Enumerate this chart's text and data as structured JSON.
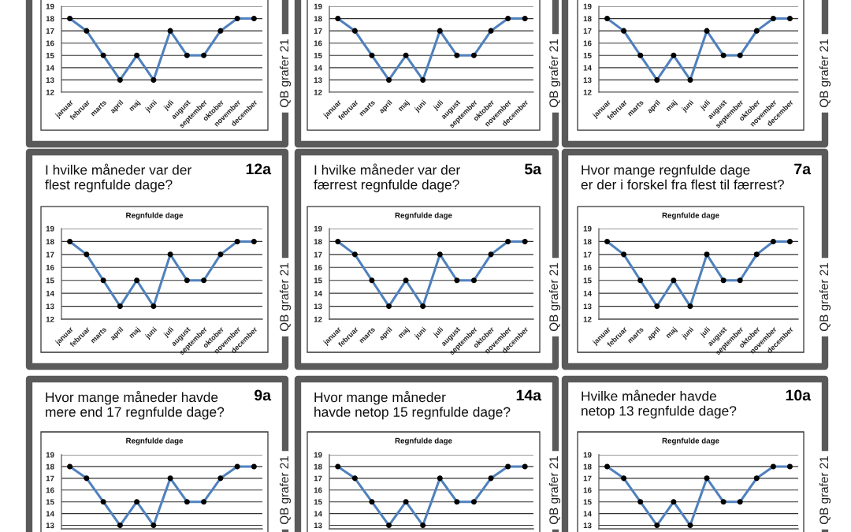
{
  "chart_data": [
    {
      "type": "line",
      "categories": [
        "januar",
        "februar",
        "marts",
        "april",
        "maj",
        "juni",
        "juli",
        "august",
        "september",
        "oktober",
        "november",
        "december"
      ],
      "series": [
        {
          "color": "#4f81bd",
          "colors": [
            "#000000",
            "#000000",
            "#000000",
            "#000000",
            "#000000",
            "#000000",
            "#000000",
            "#000000",
            "#000000",
            "#000000",
            "#000000",
            "#000000"
          ],
          "values": [
            18,
            17,
            15,
            13,
            15,
            13,
            17,
            15,
            15,
            17,
            18,
            18
          ]
        }
      ],
      "ylim": [
        12,
        19
      ],
      "yticks": [
        12,
        13,
        14,
        15,
        16,
        17,
        18,
        19
      ],
      "grid": "y",
      "marker": "circle",
      "line_style": "solid",
      "annotations": [
        "QB grafer 21"
      ]
    },
    {
      "type": "line",
      "categories": [
        "januar",
        "februar",
        "marts",
        "april",
        "maj",
        "juni",
        "juli",
        "august",
        "september",
        "oktober",
        "november",
        "december"
      ],
      "series": [
        {
          "color": "#4f81bd",
          "colors": [
            "#000000",
            "#000000",
            "#000000",
            "#000000",
            "#000000",
            "#000000",
            "#000000",
            "#000000",
            "#000000",
            "#000000",
            "#000000",
            "#000000"
          ],
          "values": [
            18,
            17,
            15,
            13,
            15,
            13,
            17,
            15,
            15,
            17,
            18,
            18
          ]
        }
      ],
      "ylim": [
        12,
        19
      ],
      "yticks": [
        12,
        13,
        14,
        15,
        16,
        17,
        18,
        19
      ],
      "grid": "y",
      "marker": "circle",
      "line_style": "solid",
      "annotations": [
        "QB grafer 21"
      ]
    },
    {
      "type": "line",
      "categories": [
        "januar",
        "februar",
        "marts",
        "april",
        "maj",
        "juni",
        "juli",
        "august",
        "september",
        "oktober",
        "november",
        "december"
      ],
      "series": [
        {
          "color": "#4f81bd",
          "colors": [
            "#000000",
            "#000000",
            "#000000",
            "#000000",
            "#000000",
            "#000000",
            "#000000",
            "#000000",
            "#000000",
            "#000000",
            "#000000",
            "#000000"
          ],
          "values": [
            18,
            17,
            15,
            13,
            15,
            13,
            17,
            15,
            15,
            17,
            18,
            18
          ]
        }
      ],
      "ylim": [
        12,
        19
      ],
      "yticks": [
        12,
        13,
        14,
        15,
        16,
        17,
        18,
        19
      ],
      "grid": "y",
      "marker": "circle",
      "line_style": "solid",
      "annotations": [
        "QB grafer 21"
      ]
    },
    {
      "type": "line",
      "title": "I hvilke måneder var der\nflest regnfulde dage?",
      "subtitle": "Regnfulde dage",
      "categories": [
        "januar",
        "februar",
        "marts",
        "april",
        "maj",
        "juni",
        "juli",
        "august",
        "september",
        "oktober",
        "november",
        "december"
      ],
      "series": [
        {
          "color": "#4f81bd",
          "colors": [
            "#000000",
            "#000000",
            "#000000",
            "#000000",
            "#000000",
            "#000000",
            "#000000",
            "#000000",
            "#000000",
            "#000000",
            "#000000",
            "#000000"
          ],
          "values": [
            18,
            17,
            15,
            13,
            15,
            13,
            17,
            15,
            15,
            17,
            18,
            18
          ]
        }
      ],
      "ylim": [
        12,
        19
      ],
      "yticks": [
        12,
        13,
        14,
        15,
        16,
        17,
        18,
        19
      ],
      "grid": "y",
      "marker": "circle",
      "line_style": "solid",
      "annotations": [
        "12a",
        "QB grafer 21"
      ]
    },
    {
      "type": "line",
      "title": "I hvilke måneder var der\nfærrest regnfulde dage?",
      "subtitle": "Regnfulde dage",
      "categories": [
        "januar",
        "februar",
        "marts",
        "april",
        "maj",
        "juni",
        "juli",
        "august",
        "september",
        "oktober",
        "november",
        "december"
      ],
      "series": [
        {
          "color": "#4f81bd",
          "colors": [
            "#000000",
            "#000000",
            "#000000",
            "#000000",
            "#000000",
            "#000000",
            "#000000",
            "#000000",
            "#000000",
            "#000000",
            "#000000",
            "#000000"
          ],
          "values": [
            18,
            17,
            15,
            13,
            15,
            13,
            17,
            15,
            15,
            17,
            18,
            18
          ]
        }
      ],
      "ylim": [
        12,
        19
      ],
      "yticks": [
        12,
        13,
        14,
        15,
        16,
        17,
        18,
        19
      ],
      "grid": "y",
      "marker": "circle",
      "line_style": "solid",
      "annotations": [
        "5a",
        "QB grafer 21"
      ]
    },
    {
      "type": "line",
      "title": "Hvor mange regnfulde dage\ner der i forskel fra flest til færrest?",
      "subtitle": "Regnfulde dage",
      "categories": [
        "januar",
        "februar",
        "marts",
        "april",
        "maj",
        "juni",
        "juli",
        "august",
        "september",
        "oktober",
        "november",
        "december"
      ],
      "series": [
        {
          "color": "#4f81bd",
          "colors": [
            "#000000",
            "#000000",
            "#000000",
            "#000000",
            "#000000",
            "#000000",
            "#000000",
            "#000000",
            "#000000",
            "#000000",
            "#000000",
            "#000000"
          ],
          "values": [
            18,
            17,
            15,
            13,
            15,
            13,
            17,
            15,
            15,
            17,
            18,
            18
          ]
        }
      ],
      "ylim": [
        12,
        19
      ],
      "yticks": [
        12,
        13,
        14,
        15,
        16,
        17,
        18,
        19
      ],
      "grid": "y",
      "marker": "circle",
      "line_style": "solid",
      "annotations": [
        "7a",
        "QB grafer 21"
      ]
    },
    {
      "type": "line",
      "title": "Hvor mange måneder havde\nmere end 17 regnfulde dage?",
      "subtitle": "Regnfulde dage",
      "categories": [
        null,
        null,
        null,
        null,
        null,
        null,
        null,
        null,
        null,
        null,
        null,
        null
      ],
      "series": [
        {
          "color": "#4f81bd",
          "colors": [
            "#000000",
            "#000000",
            "#000000",
            "#000000",
            "#000000",
            "#000000",
            "#000000",
            "#000000",
            "#000000",
            "#000000",
            "#000000",
            "#000000"
          ],
          "values": [
            18,
            17,
            15,
            13,
            15,
            13,
            17,
            15,
            15,
            17,
            18,
            18
          ]
        }
      ],
      "ylim": [
        12.7,
        19
      ],
      "yticks": [
        13,
        14,
        15,
        16,
        17,
        18,
        19
      ],
      "tick_labels": "y",
      "grid": "y",
      "marker": "circle",
      "line_style": "solid",
      "annotations": [
        "9a",
        "QB grafer 21"
      ]
    },
    {
      "type": "line",
      "title": "Hvor mange måneder\nhavde netop 15 regnfulde dage?",
      "subtitle": "Regnfulde dage",
      "categories": [
        null,
        null,
        null,
        null,
        null,
        null,
        null,
        null,
        null,
        null,
        null,
        null
      ],
      "series": [
        {
          "color": "#4f81bd",
          "colors": [
            "#000000",
            "#000000",
            "#000000",
            "#000000",
            "#000000",
            "#000000",
            "#000000",
            "#000000",
            "#000000",
            "#000000",
            "#000000",
            "#000000"
          ],
          "values": [
            18,
            17,
            15,
            13,
            15,
            13,
            17,
            15,
            15,
            17,
            18,
            18
          ]
        }
      ],
      "ylim": [
        12.7,
        19
      ],
      "yticks": [
        13,
        14,
        15,
        16,
        17,
        18,
        19
      ],
      "tick_labels": "y",
      "grid": "y",
      "marker": "circle",
      "line_style": "solid",
      "annotations": [
        "14a",
        "QB grafer 21"
      ]
    },
    {
      "type": "line",
      "title": "Hvilke måneder havde\nnetop 13 regnfulde dage?",
      "subtitle": "Regnfulde dage",
      "categories": [
        null,
        null,
        null,
        null,
        null,
        null,
        null,
        null,
        null,
        null,
        null,
        null
      ],
      "series": [
        {
          "color": "#4f81bd",
          "colors": [
            "#000000",
            "#000000",
            "#000000",
            "#000000",
            "#000000",
            "#000000",
            "#000000",
            "#000000",
            "#000000",
            "#000000",
            "#000000",
            "#000000"
          ],
          "values": [
            18,
            17,
            15,
            13,
            15,
            13,
            17,
            15,
            15,
            17,
            18,
            18
          ]
        }
      ],
      "ylim": [
        12.7,
        19
      ],
      "yticks": [
        13,
        14,
        15,
        16,
        17,
        18,
        19
      ],
      "tick_labels": "y",
      "grid": "y",
      "marker": "circle",
      "line_style": "solid",
      "annotations": [
        "10a",
        "QB grafer 21"
      ]
    }
  ]
}
